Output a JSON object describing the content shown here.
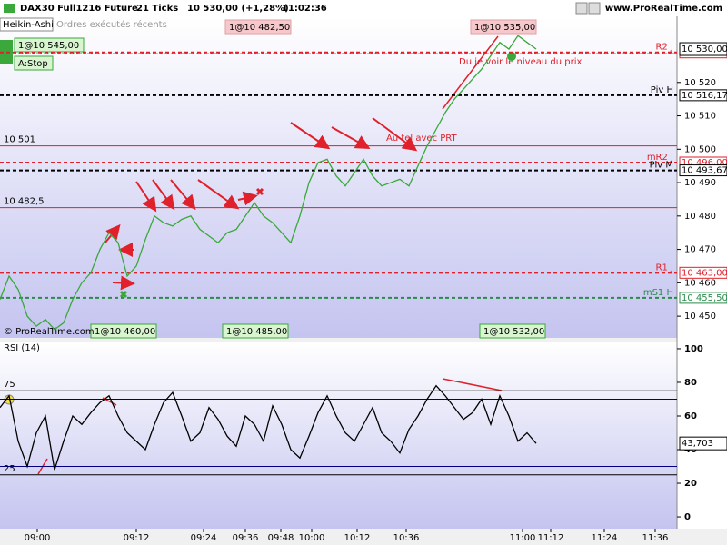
{
  "header": {
    "instrument": "DAX30 Full1216 Future",
    "interval": "21 Ticks",
    "quote": "10 530,00 (+1,28%)",
    "time": "11:02:36",
    "site": "www.ProRealTime.com"
  },
  "panel": {
    "style": "Heikin-Ashi",
    "tab": "Ordres exécutés récents",
    "order": "1@10 545,00",
    "stop": "A:Stop",
    "copyright": "© ProRealTime.com"
  },
  "executions": {
    "top": [
      "1@10 482,50",
      "1@10 535,00"
    ],
    "bottom": [
      "1@10 460,00",
      "1@10 485,00",
      "1@10 532,00"
    ]
  },
  "annotations": [
    "Du je voir le niveau du prix",
    "Au tel avec PRT"
  ],
  "chart_data": [
    {
      "type": "line",
      "title": "Heikin-Ashi",
      "x": [
        0,
        1,
        2,
        3,
        4,
        5,
        6,
        7,
        8,
        9,
        10,
        11,
        12,
        13,
        14,
        15,
        16,
        17,
        18,
        19,
        20,
        21,
        22,
        23,
        24,
        25,
        26,
        27,
        28,
        29,
        30,
        31,
        32,
        33,
        34,
        35,
        36,
        37,
        38,
        39,
        40,
        41,
        42,
        43,
        44,
        45,
        46,
        47,
        48,
        49,
        50,
        51,
        52,
        53,
        54,
        55,
        56,
        57,
        58,
        59
      ],
      "series": [
        {
          "color": "#3aa83a",
          "values": [
            10455,
            10462,
            10458,
            10450,
            10447,
            10449,
            10446,
            10448,
            10455,
            10460,
            10463,
            10470,
            10475,
            10472,
            10462,
            10465,
            10473,
            10480,
            10478,
            10477,
            10479,
            10480,
            10476,
            10474,
            10472,
            10475,
            10476,
            10480,
            10484,
            10480,
            10478,
            10475,
            10472,
            10480,
            10490,
            10496,
            10497,
            10492,
            10489,
            10493,
            10497,
            10492,
            10489,
            10490,
            10491,
            10489,
            10495,
            10501,
            10506,
            10511,
            10515,
            10518,
            10521,
            10524,
            10528,
            10532,
            10530,
            10534,
            10532,
            10530
          ]
        }
      ],
      "xlim": [
        0,
        74.5
      ],
      "ylim": [
        10443.5,
        10539.8
      ],
      "yticks": [
        {
          "value": 10450,
          "label": "10 450"
        },
        {
          "value": 10460,
          "label": "10 460"
        },
        {
          "value": 10470,
          "label": "10 470"
        },
        {
          "value": 10480,
          "label": "10 480"
        },
        {
          "value": 10490,
          "label": "10 490"
        },
        {
          "value": 10500,
          "label": "10 500"
        },
        {
          "value": 10510,
          "label": "10 510"
        },
        {
          "value": 10520,
          "label": "10 520"
        }
      ],
      "current": {
        "value": 10530,
        "label": "10 530,00",
        "color": "#000000"
      },
      "levels": [
        {
          "name": "R2 J",
          "value": 10529,
          "label": "10 529,00",
          "color": "#e0202a",
          "dash": true
        },
        {
          "name": "Piv H",
          "value": 10516.17,
          "label": "10 516,17",
          "color": "#000000",
          "dash": true
        },
        {
          "value": 10501,
          "label": "10 501",
          "color": "#e0202a",
          "dash": false,
          "left": true
        },
        {
          "name": "mR2 J",
          "value": 10496,
          "label": "10 496,00",
          "color": "#e0202a",
          "dash": true
        },
        {
          "name": "Piv M",
          "value": 10493.67,
          "label": "10 493,67",
          "color": "#000000",
          "dash": true
        },
        {
          "value": 10482.5,
          "label": "10 482,5",
          "color": "#e0202a",
          "dash": false,
          "left": true
        },
        {
          "name": "R1 J",
          "value": 10463,
          "label": "10 463,00",
          "color": "#e0202a",
          "dash": true
        },
        {
          "name": "mS1 H",
          "value": 10455.5,
          "label": "10 455,50",
          "color": "#2a8a4a",
          "dash": true
        }
      ]
    },
    {
      "type": "line",
      "title": "RSI (14)",
      "x": [
        0,
        1,
        2,
        3,
        4,
        5,
        6,
        7,
        8,
        9,
        10,
        11,
        12,
        13,
        14,
        15,
        16,
        17,
        18,
        19,
        20,
        21,
        22,
        23,
        24,
        25,
        26,
        27,
        28,
        29,
        30,
        31,
        32,
        33,
        34,
        35,
        36,
        37,
        38,
        39,
        40,
        41,
        42,
        43,
        44,
        45,
        46,
        47,
        48,
        49,
        50,
        51,
        52,
        53,
        54,
        55,
        56,
        57,
        58,
        59
      ],
      "series": [
        {
          "color": "#000000",
          "values": [
            65,
            72,
            45,
            30,
            50,
            60,
            28,
            45,
            60,
            55,
            62,
            68,
            72,
            60,
            50,
            45,
            40,
            55,
            68,
            74,
            60,
            45,
            50,
            65,
            58,
            48,
            42,
            60,
            55,
            45,
            66,
            55,
            40,
            35,
            48,
            62,
            72,
            60,
            50,
            45,
            55,
            65,
            50,
            45,
            38,
            52,
            60,
            70,
            78,
            72,
            65,
            58,
            62,
            70,
            55,
            72,
            60,
            45,
            50,
            43.703
          ]
        }
      ],
      "xlim": [
        0,
        74.5
      ],
      "ylim": [
        -7,
        104.3
      ],
      "yticks": [
        0,
        20,
        40,
        60,
        80,
        100
      ],
      "xticks": [
        {
          "value": 4.1,
          "label": "09:00"
        },
        {
          "value": 15,
          "label": "09:12"
        },
        {
          "value": 22.4,
          "label": "09:24"
        },
        {
          "value": 27,
          "label": "09:36"
        },
        {
          "value": 30.9,
          "label": "09:48"
        },
        {
          "value": 34.3,
          "label": "10:00"
        },
        {
          "value": 39.3,
          "label": "10:12"
        },
        {
          "value": 44.7,
          "label": "10:36"
        },
        {
          "value": 57.5,
          "label": "11:00"
        },
        {
          "value": 60.6,
          "label": "11:12"
        },
        {
          "value": 66.5,
          "label": "11:24"
        },
        {
          "value": 72.1,
          "label": "11:36"
        }
      ],
      "current": {
        "value": 43.703,
        "label": "43,703",
        "color": "#000000"
      },
      "levels": [
        {
          "value": 75,
          "label": "75",
          "color": "#000000",
          "dash": false,
          "left": true
        },
        {
          "value": 70,
          "color": "#000080",
          "dash": false
        },
        {
          "value": 30,
          "color": "#000080",
          "dash": false
        },
        {
          "value": 25,
          "label": "25",
          "color": "#000000",
          "dash": false,
          "left": true
        }
      ]
    }
  ]
}
